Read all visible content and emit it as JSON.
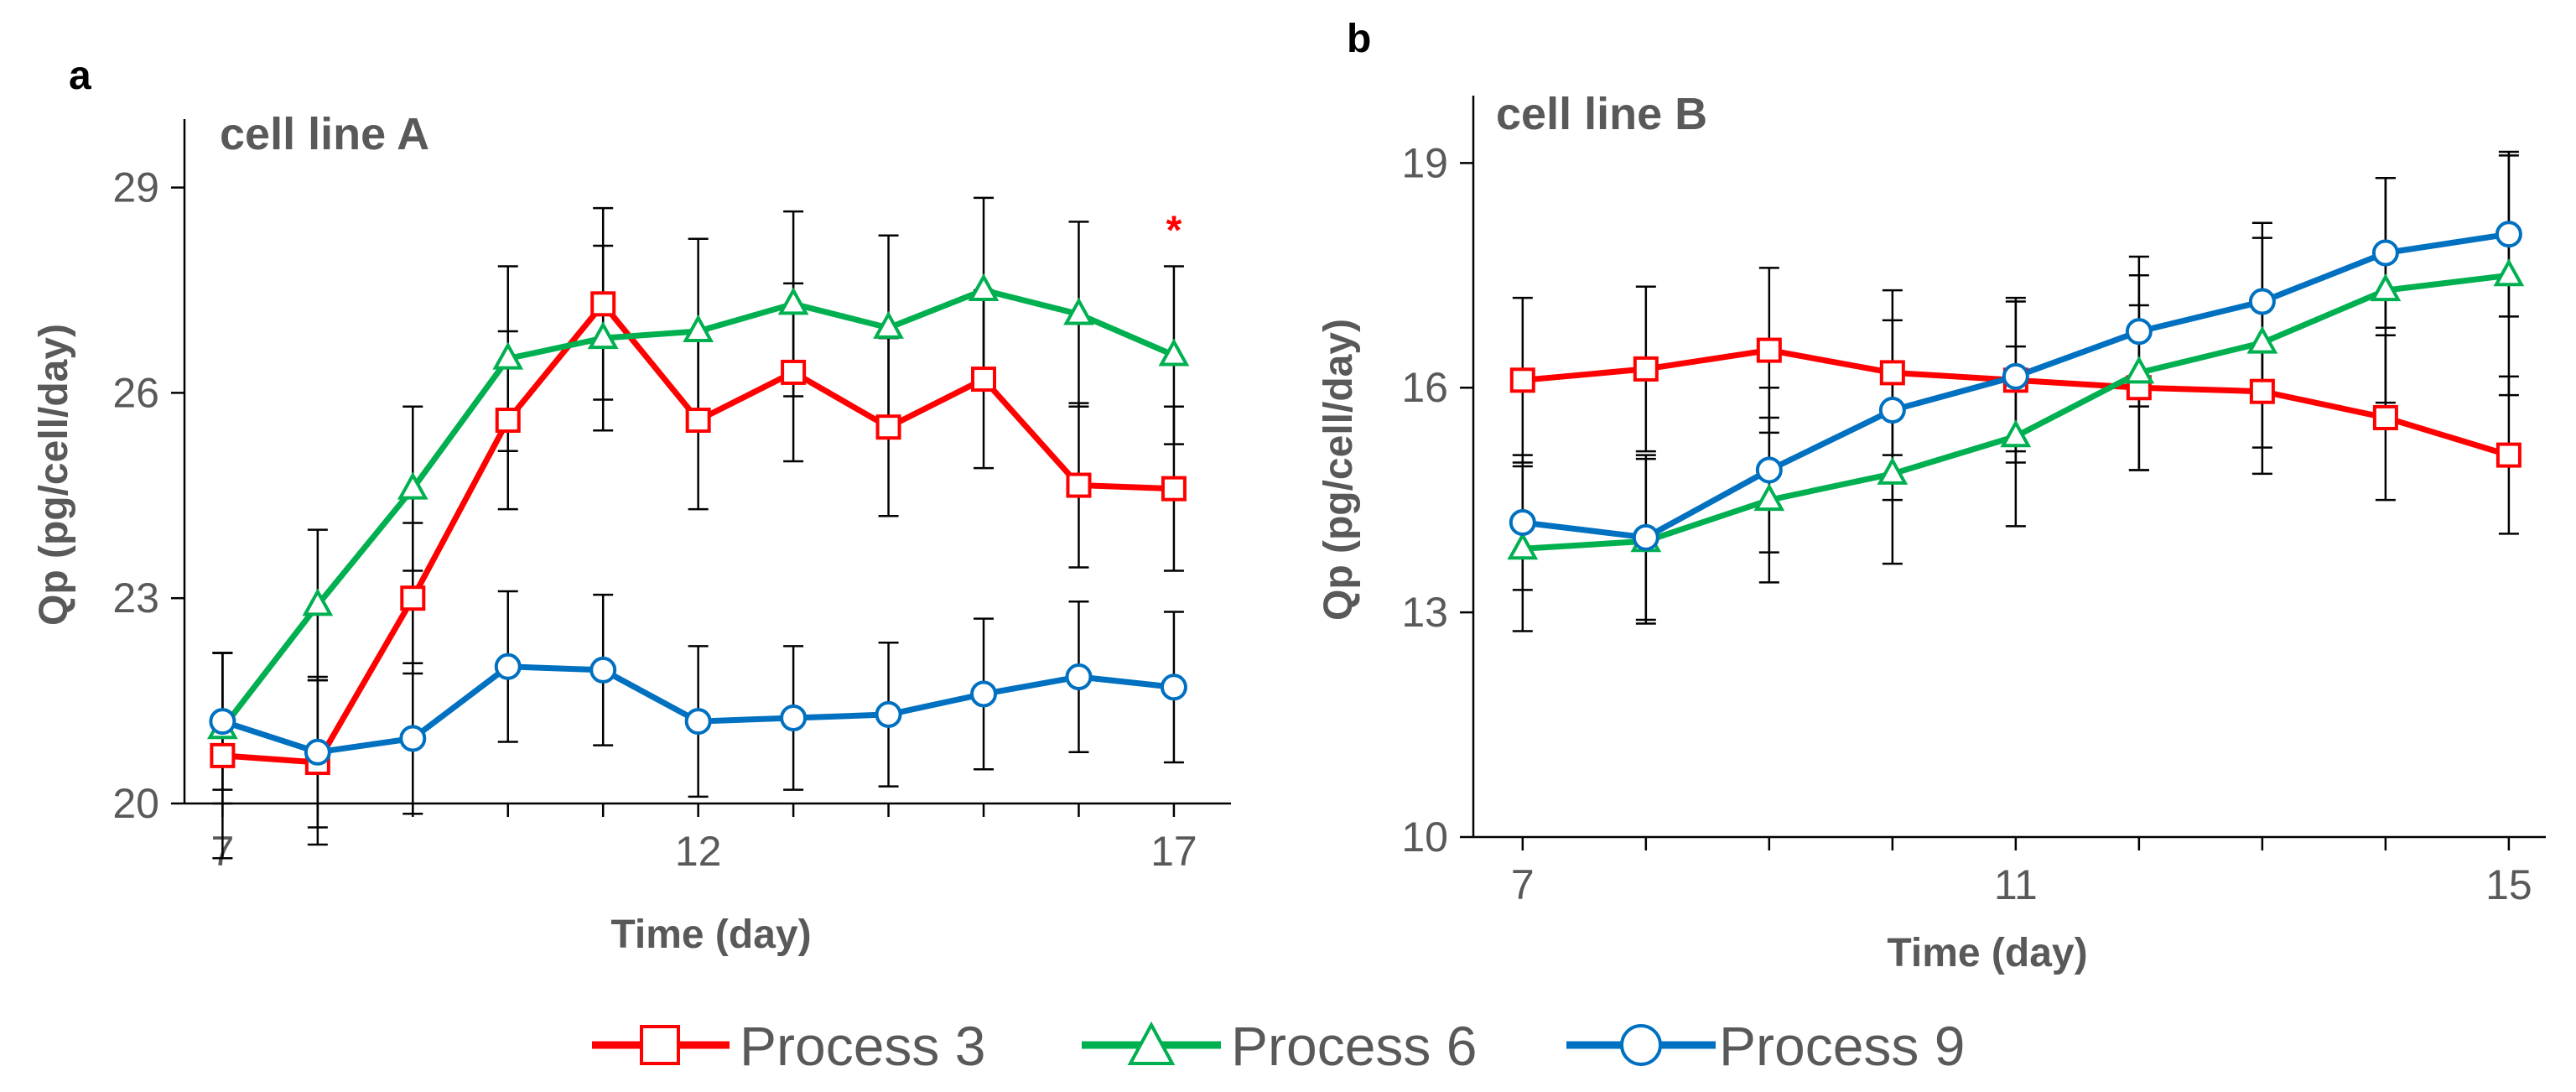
{
  "chart_data": [
    {
      "panel": "a",
      "type": "line",
      "title": "cell line A",
      "xlabel": "Time (day)",
      "ylabel": "Qp (pg/cell/day)",
      "xlim": [
        6.6,
        17.6
      ],
      "ylim": [
        20,
        30
      ],
      "x_ticks": [
        7,
        12,
        17
      ],
      "y_ticks": [
        20,
        23,
        26,
        29
      ],
      "annotations": [
        {
          "text": "*",
          "x": 17,
          "y": 28.4,
          "color": "#ff0000"
        }
      ],
      "series": [
        {
          "name": "Process 3",
          "x": [
            7,
            8,
            9,
            10,
            11,
            12,
            13,
            14,
            15,
            16,
            17
          ],
          "values": [
            20.7,
            20.6,
            23.0,
            25.6,
            27.3,
            25.6,
            26.3,
            25.5,
            26.2,
            24.65,
            24.6
          ],
          "errors": [
            1.5,
            1.2,
            1.1,
            1.3,
            1.4,
            1.3,
            1.3,
            1.3,
            1.3,
            1.2,
            1.2
          ]
        },
        {
          "name": "Process 6",
          "x": [
            7,
            8,
            9,
            10,
            11,
            12,
            13,
            14,
            15,
            16,
            17
          ],
          "values": [
            21.1,
            22.9,
            24.6,
            26.5,
            26.8,
            26.9,
            27.3,
            26.95,
            27.5,
            27.15,
            26.55
          ],
          "errors": [
            1.1,
            1.1,
            1.2,
            1.35,
            1.35,
            1.35,
            1.35,
            1.35,
            1.35,
            1.35,
            1.3
          ]
        },
        {
          "name": "Process 9",
          "x": [
            7,
            8,
            9,
            10,
            11,
            12,
            13,
            14,
            15,
            16,
            17
          ],
          "values": [
            21.2,
            20.75,
            20.95,
            22.0,
            21.95,
            21.2,
            21.25,
            21.3,
            21.6,
            21.85,
            21.7
          ],
          "errors": [
            1.0,
            1.1,
            1.1,
            1.1,
            1.1,
            1.1,
            1.05,
            1.05,
            1.1,
            1.1,
            1.1
          ]
        }
      ]
    },
    {
      "panel": "b",
      "type": "line",
      "title": "cell line B",
      "xlabel": "Time (day)",
      "ylabel": "Qp (pg/cell/day)",
      "xlim": [
        6.6,
        15.3
      ],
      "ylim": [
        10,
        19.9
      ],
      "x_ticks": [
        7,
        11,
        15
      ],
      "y_ticks": [
        10,
        13,
        16,
        19
      ],
      "annotations": [],
      "series": [
        {
          "name": "Process 3",
          "x": [
            7,
            8,
            9,
            10,
            11,
            12,
            13,
            14,
            15
          ],
          "values": [
            16.1,
            16.25,
            16.5,
            16.2,
            16.1,
            16.0,
            15.95,
            15.6,
            15.1
          ],
          "errors": [
            1.1,
            1.1,
            1.1,
            1.1,
            1.1,
            1.1,
            1.1,
            1.1,
            1.05
          ]
        },
        {
          "name": "Process 6",
          "x": [
            7,
            8,
            9,
            10,
            11,
            12,
            13,
            14,
            15
          ],
          "values": [
            13.85,
            13.95,
            14.5,
            14.85,
            15.35,
            16.2,
            16.6,
            17.3,
            17.5
          ],
          "errors": [
            1.1,
            1.1,
            1.1,
            1.2,
            1.2,
            1.3,
            1.4,
            1.5,
            1.6
          ]
        },
        {
          "name": "Process 9",
          "x": [
            7,
            8,
            9,
            10,
            11,
            12,
            13,
            14,
            15
          ],
          "values": [
            14.2,
            14.0,
            14.9,
            15.7,
            16.15,
            16.75,
            17.15,
            17.8,
            18.05
          ],
          "errors": [
            0.9,
            1.1,
            1.1,
            1.2,
            1.0,
            1.0,
            1.05,
            1.0,
            1.1
          ]
        }
      ]
    }
  ],
  "legend": [
    {
      "name": "Process 3",
      "color": "#ff0000",
      "marker": "square"
    },
    {
      "name": "Process 6",
      "color": "#00b050",
      "marker": "triangle"
    },
    {
      "name": "Process 9",
      "color": "#0070c0",
      "marker": "circle"
    }
  ]
}
